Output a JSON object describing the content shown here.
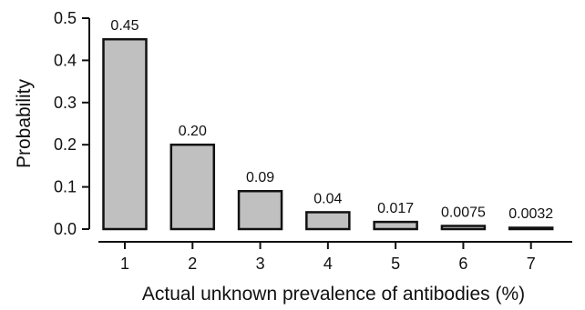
{
  "chart_data": {
    "type": "bar",
    "title": "",
    "xlabel": "Actual unknown prevalence of antibodies (%)",
    "ylabel": "Probability",
    "categories": [
      "1",
      "2",
      "3",
      "4",
      "5",
      "6",
      "7"
    ],
    "values": [
      0.45,
      0.2,
      0.09,
      0.04,
      0.017,
      0.0075,
      0.0032
    ],
    "data_labels": [
      "0.45",
      "0.20",
      "0.09",
      "0.04",
      "0.017",
      "0.0075",
      "0.0032"
    ],
    "ylim": [
      0,
      0.5
    ],
    "yticks": [
      0.0,
      0.1,
      0.2,
      0.3,
      0.4,
      0.5
    ],
    "ytick_labels": [
      "0.0",
      "0.1",
      "0.2",
      "0.3",
      "0.4",
      "0.5"
    ],
    "grid": false,
    "legend": "none",
    "bar_fill": "#c0c0c0",
    "bar_stroke": "#111111",
    "axis_color": "#111111"
  }
}
